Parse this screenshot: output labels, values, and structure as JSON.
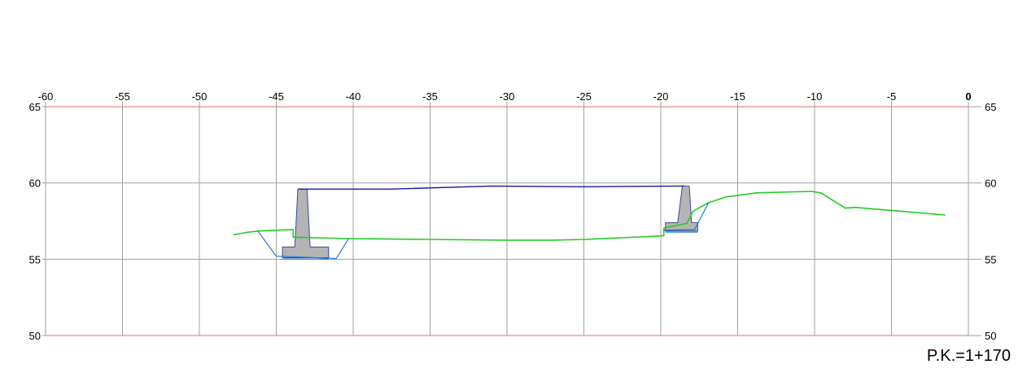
{
  "station": "P.K.=1+170",
  "colors": {
    "grid": "#a0a0a0",
    "frame": "#e07070",
    "terrain": "#22cc22",
    "deck": "#1a1aa8",
    "excavation": "#1a70d0",
    "abutment_fill": "#b4b4b4",
    "abutment_stroke": "#3a4a9a"
  },
  "chart_data": {
    "type": "line",
    "title": "",
    "xlabel": "",
    "ylabel": "",
    "xlim": [
      -60,
      0
    ],
    "ylim": [
      50,
      65
    ],
    "x_ticks": [
      -60,
      -55,
      -50,
      -45,
      -40,
      -35,
      -30,
      -25,
      -20,
      -15,
      -10,
      -5,
      0
    ],
    "x_tick_labels": [
      "-60",
      "-55",
      "-50",
      "-45",
      "-40",
      "-35",
      "-30",
      "-25",
      "-20",
      "-15",
      "-10",
      "-5",
      "0"
    ],
    "y_ticks": [
      50,
      55,
      60,
      65
    ],
    "y_tick_labels": [
      "50",
      "55",
      "60",
      "65"
    ],
    "grid": true,
    "series": [
      {
        "id": "terrain",
        "x": [
          -47.8,
          -47.0,
          -46.2,
          -43.9,
          -43.9,
          -40.3,
          -35,
          -30,
          -27.1,
          -25,
          -20.5,
          -19.8,
          -19.8,
          -18.3,
          -17.9,
          -16.9,
          -15.7,
          -15.2,
          -13.8,
          -10.2,
          -9.6,
          -8.0,
          -7.4,
          -5,
          -1.5
        ],
        "y": [
          56.6,
          56.75,
          56.85,
          56.95,
          56.45,
          56.35,
          56.3,
          56.25,
          56.25,
          56.3,
          56.5,
          56.55,
          57.05,
          57.35,
          58.15,
          58.7,
          59.1,
          59.15,
          59.35,
          59.45,
          59.35,
          58.35,
          58.4,
          58.2,
          57.9
        ]
      },
      {
        "id": "deck",
        "x": [
          -43.6,
          -37.5,
          -31,
          -25,
          -18.5
        ],
        "y": [
          59.6,
          59.6,
          59.8,
          59.75,
          59.8
        ]
      },
      {
        "id": "excavation-left",
        "x": [
          -46.2,
          -45.0,
          -41.1,
          -40.3
        ],
        "y": [
          56.85,
          55.2,
          55.05,
          56.35
        ]
      },
      {
        "id": "excavation-right",
        "x": [
          -19.8,
          -17.8,
          -16.9
        ],
        "y": [
          56.9,
          56.95,
          58.7
        ]
      },
      {
        "id": "abutment-left",
        "x": [
          -43.6,
          -43.0,
          -42.8,
          -41.6,
          -41.6,
          -44.6,
          -44.6,
          -43.8
        ],
        "y": [
          59.6,
          59.6,
          55.8,
          55.8,
          55.1,
          55.1,
          55.8,
          55.8
        ]
      },
      {
        "id": "abutment-right",
        "x": [
          -18.6,
          -18.15,
          -18.0,
          -17.6,
          -17.6,
          -19.7,
          -19.7,
          -18.9
        ],
        "y": [
          59.8,
          59.8,
          57.4,
          57.4,
          56.85,
          56.85,
          57.4,
          57.4
        ]
      }
    ]
  }
}
